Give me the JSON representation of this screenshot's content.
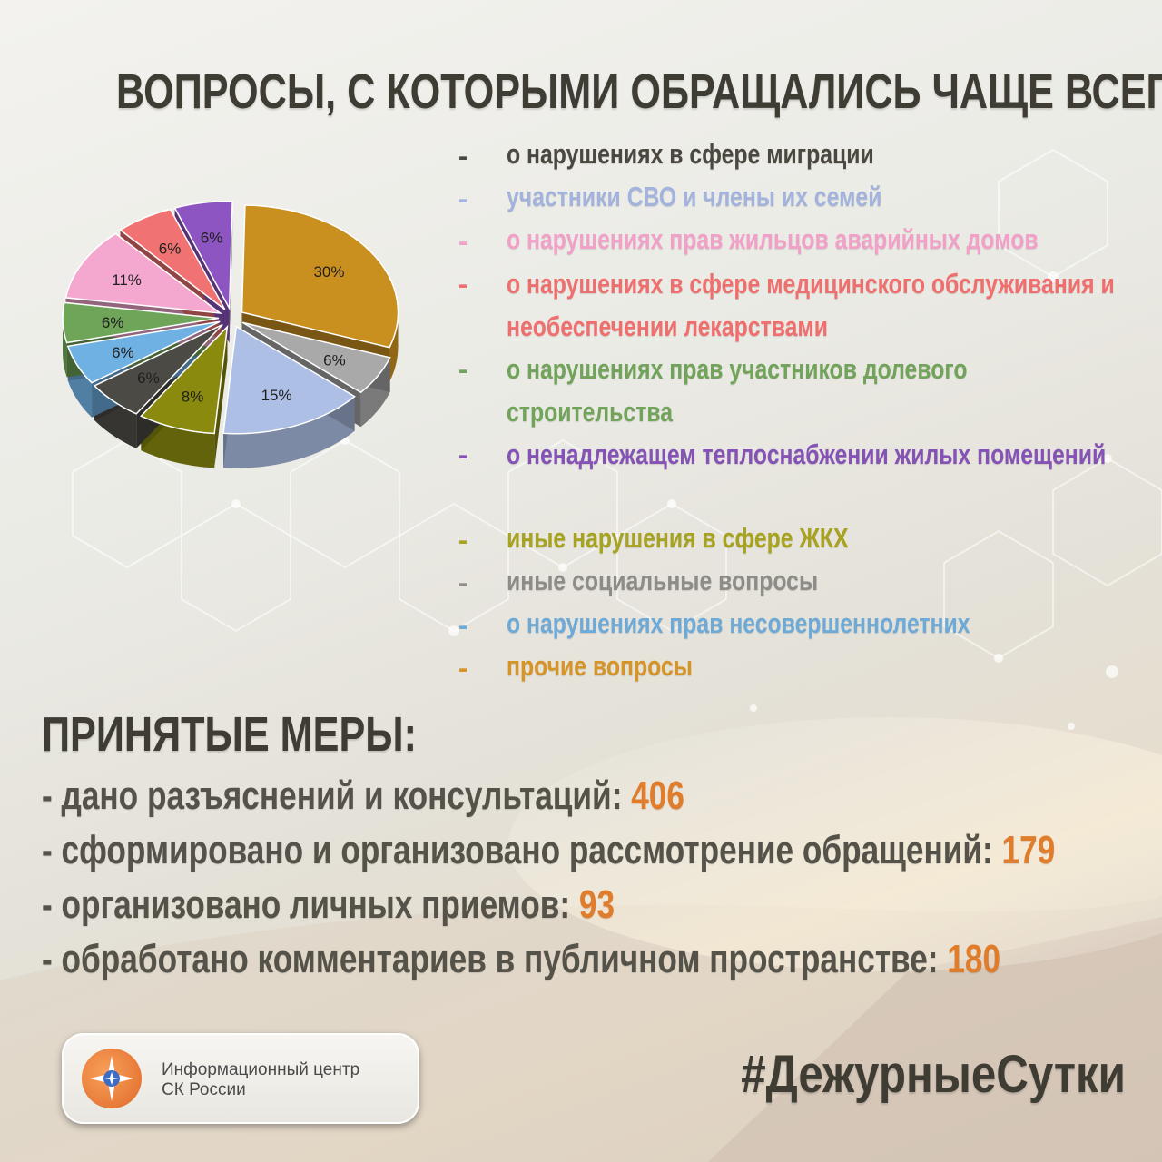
{
  "title": "ВОПРОСЫ, С КОТОРЫМИ ОБРАЩАЛИСЬ ЧАЩЕ ВСЕГО:",
  "legend": [
    {
      "dash": "-",
      "text": "о нарушениях в сфере миграции",
      "color": "#4b4840"
    },
    {
      "dash": "-",
      "text": "участники СВО и члены их семей",
      "color": "#a3b3dc"
    },
    {
      "dash": "-",
      "text": "о нарушениях прав жильцов аварийных домов",
      "color": "#f1a0c7"
    },
    {
      "dash": "-",
      "text": "о нарушениях в сфере медицинского обслуживания и необеспечении лекарствами",
      "color": "#ef6f6f"
    },
    {
      "dash": "-",
      "text": "о нарушениях прав участников долевого строительства",
      "color": "#72a35b"
    },
    {
      "dash": "-",
      "text": "о ненадлежащем теплоснабжении жилых помещений",
      "color": "#8453b5"
    },
    {
      "dash": "-",
      "text": "иные нарушения в сфере ЖКХ",
      "color": "#a7a321"
    },
    {
      "dash": "-",
      "text": "иные социальные вопросы",
      "color": "#8e8c87"
    },
    {
      "dash": "-",
      "text": "о нарушениях прав несовершеннолетних",
      "color": "#6eaad8"
    },
    {
      "dash": "-",
      "text": "прочие вопросы",
      "color": "#d69427"
    }
  ],
  "chart_data": {
    "type": "pie",
    "slices": [
      {
        "label": "30%",
        "value": 30,
        "color": "#c98f1f",
        "category": "прочие вопросы"
      },
      {
        "label": "6%",
        "value": 6,
        "color": "#a9a9a9",
        "category": "иные социальные вопросы"
      },
      {
        "label": "15%",
        "value": 15,
        "color": "#aebfe6",
        "category": "участники СВО и члены их семей"
      },
      {
        "label": "8%",
        "value": 8,
        "color": "#8a8a0f",
        "category": "иные нарушения в сфере ЖКХ"
      },
      {
        "label": "6%",
        "value": 6,
        "color": "#4b4a45",
        "category": "о нарушениях в сфере миграции"
      },
      {
        "label": "6%",
        "value": 6,
        "color": "#6fb1e3",
        "category": "о нарушениях прав несовершеннолетних"
      },
      {
        "label": "6%",
        "value": 6,
        "color": "#6fa559",
        "category": "о нарушениях прав участников долевого строительства"
      },
      {
        "label": "11%",
        "value": 11,
        "color": "#f4a8cf",
        "category": "о нарушениях прав жильцов аварийных домов"
      },
      {
        "label": "6%",
        "value": 6,
        "color": "#f07272",
        "category": "о нарушениях в сфере медицинского обслуживания и необеспечении лекарствами"
      },
      {
        "label": "6%",
        "value": 6,
        "color": "#8d55c2",
        "category": "о ненадлежащем теплоснабжении жилых помещений"
      }
    ]
  },
  "measures_title": "ПРИНЯТЫЕ МЕРЫ:",
  "measures": [
    {
      "text": "- дано разъяснений и консультаций: ",
      "value": "406"
    },
    {
      "text": "- сформировано и организовано рассмотрение обращений: ",
      "value": "179"
    },
    {
      "text": "- организовано личных приемов: ",
      "value": "93"
    },
    {
      "text": "- обработано комментариев в публичном пространстве: ",
      "value": "180"
    }
  ],
  "logo": {
    "line1": "Информационный центр",
    "line2": "СК России"
  },
  "hashtag": "#ДежурныеСутки",
  "colors": {
    "accent_number": "#e07d2c",
    "title": "#3f3c34"
  }
}
